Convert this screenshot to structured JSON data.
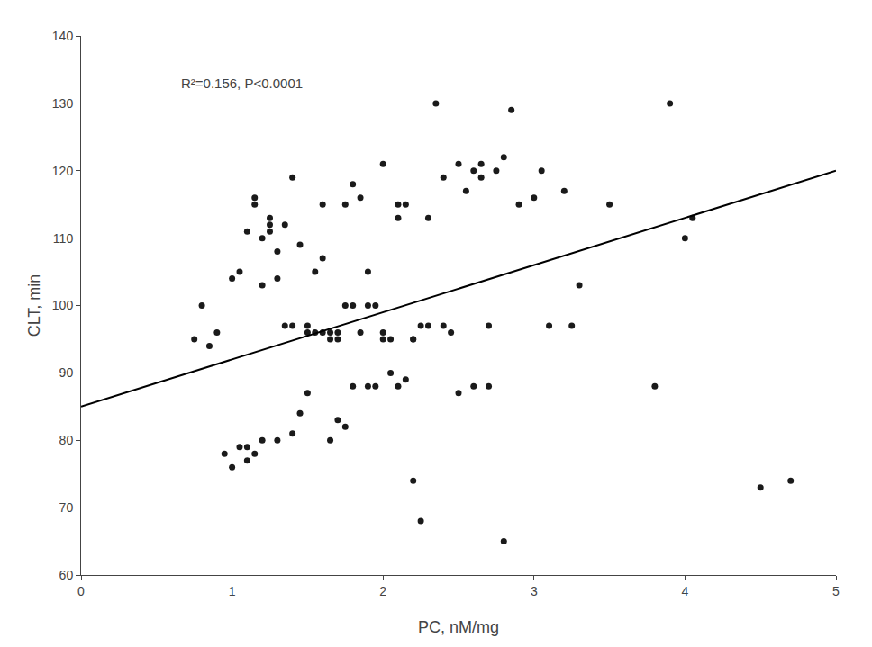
{
  "chart_data": {
    "type": "scatter",
    "xlabel": "PC, nM/mg",
    "ylabel": "CLT, min",
    "annotation": "R²=0.156, P<0.0001",
    "xlim": [
      0,
      5
    ],
    "ylim": [
      60,
      140
    ],
    "xticks": [
      0,
      1,
      2,
      3,
      4,
      5
    ],
    "yticks": [
      60,
      70,
      80,
      90,
      100,
      110,
      120,
      130,
      140
    ],
    "grid": false,
    "series": [
      {
        "type": "scatter",
        "marker": "circle",
        "color": "#1a1a1a",
        "x": [
          0.75,
          0.8,
          0.85,
          0.9,
          0.95,
          1.0,
          1.0,
          1.05,
          1.05,
          1.1,
          1.1,
          1.1,
          1.15,
          1.15,
          1.15,
          1.2,
          1.2,
          1.2,
          1.25,
          1.25,
          1.25,
          1.3,
          1.3,
          1.3,
          1.35,
          1.35,
          1.4,
          1.4,
          1.4,
          1.45,
          1.45,
          1.5,
          1.5,
          1.5,
          1.55,
          1.55,
          1.6,
          1.6,
          1.6,
          1.65,
          1.65,
          1.65,
          1.7,
          1.7,
          1.7,
          1.75,
          1.75,
          1.75,
          1.8,
          1.8,
          1.8,
          1.85,
          1.85,
          1.9,
          1.9,
          1.9,
          1.95,
          1.95,
          2.0,
          2.0,
          2.0,
          2.05,
          2.05,
          2.1,
          2.1,
          2.1,
          2.15,
          2.15,
          2.2,
          2.2,
          2.2,
          2.25,
          2.25,
          2.3,
          2.3,
          2.35,
          2.4,
          2.4,
          2.45,
          2.5,
          2.5,
          2.55,
          2.6,
          2.6,
          2.65,
          2.65,
          2.7,
          2.7,
          2.75,
          2.8,
          2.8,
          2.85,
          2.9,
          3.0,
          3.05,
          3.1,
          3.2,
          3.25,
          3.3,
          3.5,
          3.8,
          3.9,
          4.0,
          4.05,
          4.5,
          4.7
        ],
        "values": [
          95,
          100,
          94,
          96,
          78,
          104,
          76,
          79,
          105,
          111,
          79,
          77,
          116,
          115,
          78,
          110,
          103,
          80,
          112,
          113,
          111,
          108,
          104,
          80,
          112,
          97,
          119,
          97,
          81,
          109,
          84,
          97,
          96,
          87,
          105,
          96,
          115,
          107,
          96,
          95,
          96,
          80,
          96,
          95,
          83,
          100,
          115,
          82,
          118,
          100,
          88,
          96,
          116,
          105,
          100,
          88,
          100,
          88,
          121,
          96,
          95,
          95,
          90,
          115,
          113,
          88,
          115,
          89,
          95,
          74,
          95,
          97,
          68,
          113,
          97,
          130,
          119,
          97,
          96,
          121,
          87,
          117,
          120,
          88,
          121,
          119,
          97,
          88,
          120,
          122,
          65,
          129,
          115,
          116,
          120,
          97,
          117,
          97,
          103,
          115,
          88,
          130,
          110,
          113,
          73,
          74
        ]
      },
      {
        "type": "line",
        "line_style": "solid",
        "color": "#000000",
        "x": [
          0,
          5
        ],
        "values": [
          85.0,
          120.0
        ]
      }
    ]
  }
}
